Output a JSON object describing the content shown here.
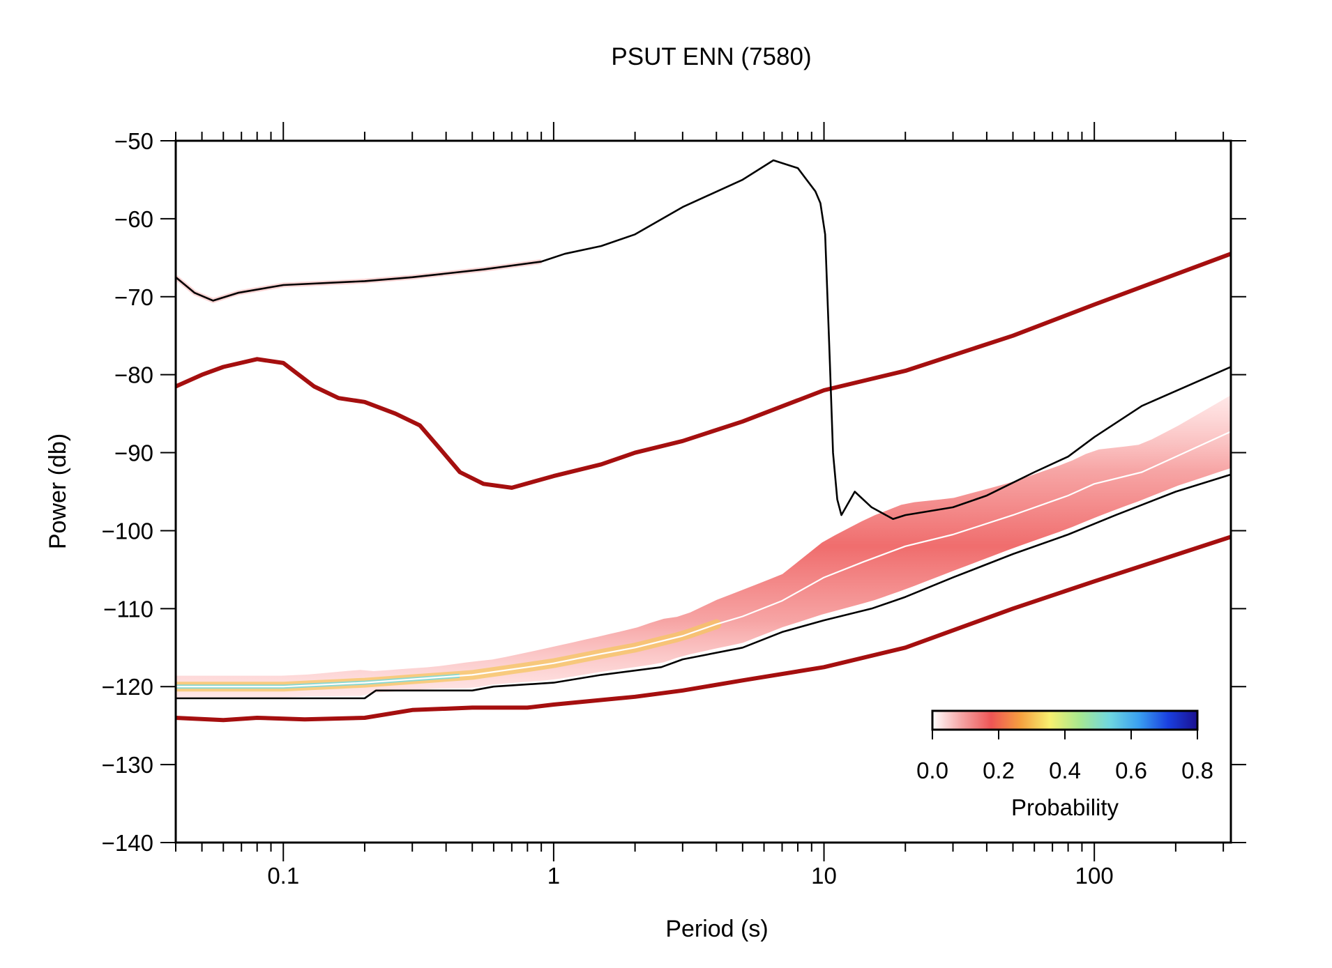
{
  "chart_data": {
    "type": "line",
    "title": "PSUT ENN (7580)",
    "xlabel": "Period (s)",
    "ylabel": "Power (db)",
    "x_scale": "log",
    "xlim": [
      0.04,
      320
    ],
    "ylim": [
      -140,
      -50
    ],
    "x_ticks": [
      0.1,
      1,
      10,
      100
    ],
    "x_tick_labels": [
      "0.1",
      "1",
      "10",
      "100"
    ],
    "y_ticks": [
      -50,
      -60,
      -70,
      -80,
      -90,
      -100,
      -110,
      -120,
      -130,
      -140
    ],
    "y_tick_labels": [
      "−50",
      "−60",
      "−70",
      "−80",
      "−90",
      "−100",
      "−110",
      "−120",
      "−130",
      "−140"
    ],
    "colorbar": {
      "label": "Probability",
      "ticks": [
        0.0,
        0.2,
        0.4,
        0.6,
        0.8
      ],
      "tick_labels": [
        "0.0",
        "0.2",
        "0.4",
        "0.6",
        "0.8"
      ],
      "colors": [
        "#ffffff",
        "#f4a3a3",
        "#ee5555",
        "#f5a040",
        "#f7f070",
        "#a8e890",
        "#70d8e0",
        "#3aa0f0",
        "#1a40e0",
        "#1a1090"
      ]
    },
    "series": [
      {
        "role": "nhnm",
        "color": "#a50f0f",
        "points": [
          [
            0.04,
            -81.5
          ],
          [
            0.05,
            -80
          ],
          [
            0.06,
            -79
          ],
          [
            0.08,
            -78
          ],
          [
            0.1,
            -78.5
          ],
          [
            0.13,
            -81.5
          ],
          [
            0.16,
            -83
          ],
          [
            0.2,
            -83.5
          ],
          [
            0.26,
            -85
          ],
          [
            0.32,
            -86.5
          ],
          [
            0.38,
            -89.5
          ],
          [
            0.45,
            -92.5
          ],
          [
            0.55,
            -94
          ],
          [
            0.7,
            -94.5
          ],
          [
            1,
            -93
          ],
          [
            1.5,
            -91.5
          ],
          [
            2,
            -90
          ],
          [
            3,
            -88.5
          ],
          [
            5,
            -86
          ],
          [
            10,
            -82
          ],
          [
            20,
            -79.5
          ],
          [
            50,
            -75
          ],
          [
            100,
            -71
          ],
          [
            320,
            -64.5
          ]
        ]
      },
      {
        "role": "nlnm",
        "color": "#a50f0f",
        "points": [
          [
            0.04,
            -124
          ],
          [
            0.06,
            -124.3
          ],
          [
            0.08,
            -124
          ],
          [
            0.12,
            -124.2
          ],
          [
            0.2,
            -124
          ],
          [
            0.3,
            -123
          ],
          [
            0.5,
            -122.7
          ],
          [
            0.8,
            -122.7
          ],
          [
            1,
            -122.3
          ],
          [
            2,
            -121.3
          ],
          [
            3,
            -120.5
          ],
          [
            5,
            -119.2
          ],
          [
            10,
            -117.5
          ],
          [
            20,
            -115
          ],
          [
            50,
            -110
          ],
          [
            100,
            -106.5
          ],
          [
            320,
            -100.8
          ]
        ]
      },
      {
        "role": "max",
        "color": "#000000",
        "points": [
          [
            0.04,
            -67.5
          ],
          [
            0.047,
            -69.5
          ],
          [
            0.055,
            -70.5
          ],
          [
            0.068,
            -69.5
          ],
          [
            0.1,
            -68.5
          ],
          [
            0.2,
            -68
          ],
          [
            0.3,
            -67.5
          ],
          [
            0.55,
            -66.5
          ],
          [
            0.9,
            -65.5
          ],
          [
            1.1,
            -64.5
          ],
          [
            1.5,
            -63.5
          ],
          [
            2,
            -62
          ],
          [
            3,
            -58.5
          ],
          [
            5,
            -55
          ],
          [
            6.5,
            -52.5
          ],
          [
            8,
            -53.5
          ],
          [
            9.3,
            -56.5
          ],
          [
            9.7,
            -58
          ],
          [
            10.1,
            -62
          ],
          [
            10.5,
            -78
          ],
          [
            10.8,
            -90
          ],
          [
            11.2,
            -96
          ],
          [
            11.6,
            -98
          ],
          [
            13,
            -95
          ],
          [
            15,
            -97
          ],
          [
            18,
            -98.5
          ],
          [
            20,
            -98
          ],
          [
            30,
            -97
          ],
          [
            40,
            -95.5
          ],
          [
            60,
            -92.5
          ],
          [
            80,
            -90.5
          ],
          [
            100,
            -88
          ],
          [
            150,
            -84
          ],
          [
            320,
            -79
          ]
        ]
      },
      {
        "role": "mode",
        "color": "#ffffff",
        "points": [
          [
            0.04,
            -120
          ],
          [
            0.1,
            -120
          ],
          [
            0.2,
            -119.5
          ],
          [
            0.5,
            -118.5
          ],
          [
            0.8,
            -117.5
          ],
          [
            1,
            -117
          ],
          [
            1.5,
            -115.8
          ],
          [
            2,
            -115
          ],
          [
            3,
            -113.5
          ],
          [
            4,
            -112
          ],
          [
            5,
            -111
          ],
          [
            7,
            -109
          ],
          [
            10,
            -106
          ],
          [
            14,
            -104
          ],
          [
            20,
            -102
          ],
          [
            30,
            -100.5
          ],
          [
            50,
            -98
          ],
          [
            80,
            -95.5
          ],
          [
            100,
            -94
          ],
          [
            150,
            -92.5
          ],
          [
            320,
            -87.3
          ]
        ]
      },
      {
        "role": "min",
        "color": "#000000",
        "points": [
          [
            0.04,
            -121.5
          ],
          [
            0.1,
            -121.5
          ],
          [
            0.2,
            -121.5
          ],
          [
            0.22,
            -120.5
          ],
          [
            0.5,
            -120.5
          ],
          [
            0.6,
            -120
          ],
          [
            1,
            -119.5
          ],
          [
            1.5,
            -118.5
          ],
          [
            2.5,
            -117.5
          ],
          [
            3,
            -116.5
          ],
          [
            5,
            -115
          ],
          [
            7,
            -113
          ],
          [
            10,
            -111.5
          ],
          [
            15,
            -110
          ],
          [
            20,
            -108.5
          ],
          [
            30,
            -106
          ],
          [
            50,
            -103
          ],
          [
            80,
            -100.5
          ],
          [
            120,
            -98
          ],
          [
            200,
            -95
          ],
          [
            320,
            -92.8
          ]
        ]
      }
    ]
  }
}
